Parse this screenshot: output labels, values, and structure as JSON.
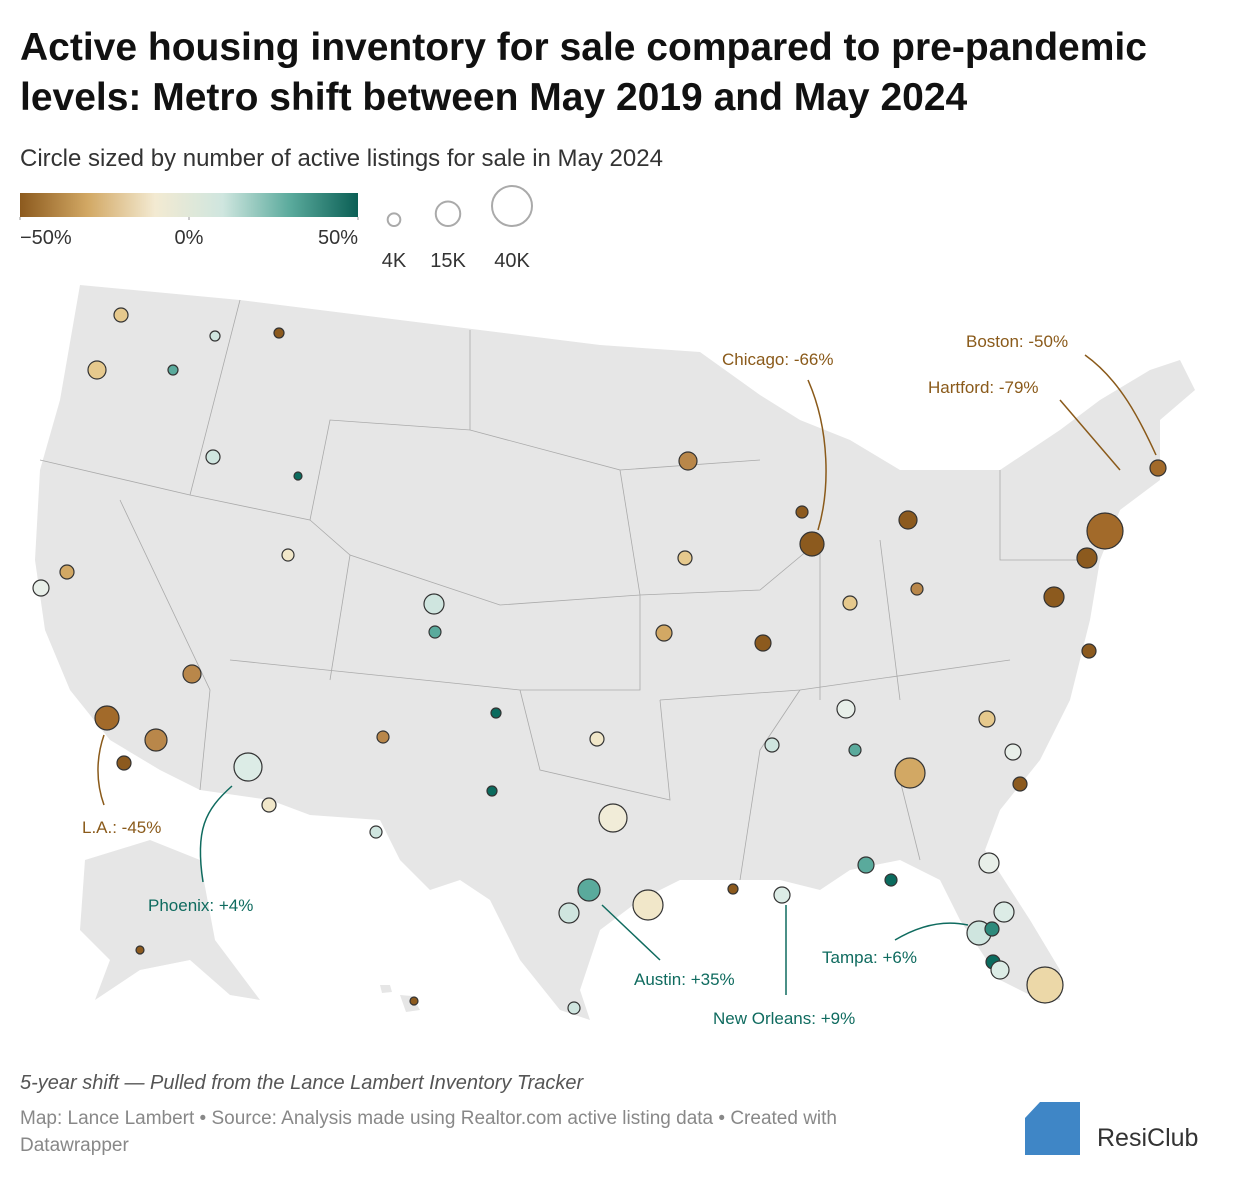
{
  "header": {
    "title_line1": "Active housing inventory for sale compared to pre-pandemic",
    "title_line2": "levels: Metro shift between May 2019 and May 2024",
    "subtitle": "Circle sized by number of active listings for sale in May 2024"
  },
  "legend": {
    "color": {
      "range": [
        -50,
        50
      ],
      "colors": [
        "#8c5a1e",
        "#d2a864",
        "#f3ead2",
        "#cfe6df",
        "#5aaa9c",
        "#0b5f55"
      ],
      "ticks": [
        {
          "value": -50,
          "label": "−50%"
        },
        {
          "value": 0,
          "label": "0%"
        },
        {
          "value": 50,
          "label": "50%"
        }
      ]
    },
    "size": {
      "ticks": [
        {
          "value": 4000,
          "label": "4K"
        },
        {
          "value": 15000,
          "label": "15K"
        },
        {
          "value": 40000,
          "label": "40K"
        }
      ]
    }
  },
  "annotations": [
    "Chicago: -66%",
    "Boston: -50%",
    "Hartford: -79%",
    "L.A.: -45%",
    "Phoenix: +4%",
    "Austin: +35%",
    "New Orleans: +9%",
    "Tampa: +6%"
  ],
  "footer": {
    "note": "5-year shift — Pulled from the Lance Lambert Inventory Tracker",
    "source_line1": "Map: Lance Lambert • Source: Analysis made using Realtor.com active listing data • Created with",
    "source_line2": "Datawrapper",
    "logo": "ResiClub"
  }
}
